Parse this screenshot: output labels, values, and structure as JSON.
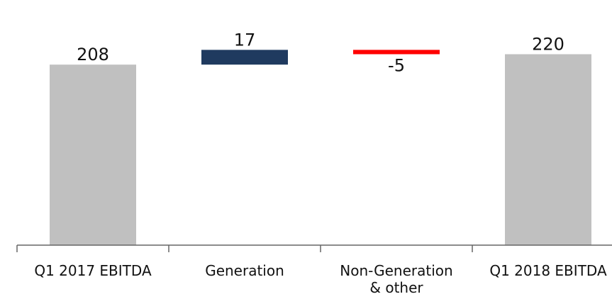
{
  "chart_data": {
    "type": "bar",
    "subtype": "waterfall",
    "categories": [
      "Q1 2017 EBITDA",
      "Generation",
      "Non-Generation & other",
      "Q1 2018 EBITDA"
    ],
    "category_lines": [
      [
        "Q1 2017 EBITDA"
      ],
      [
        "Generation"
      ],
      [
        "Non-Generation",
        "& other"
      ],
      [
        "Q1 2018 EBITDA"
      ]
    ],
    "values": [
      208,
      17,
      -5,
      220
    ],
    "value_labels": [
      "208",
      "17",
      "-5",
      "220"
    ],
    "bar_kinds": [
      "total",
      "delta",
      "delta",
      "total"
    ],
    "ylim": [
      0,
      240
    ],
    "grid": false,
    "title": "",
    "xlabel": "",
    "ylabel": "",
    "colors": {
      "total": "#c0c0c0",
      "increase": "#1f3a5f",
      "decrease": "#ff0000",
      "axis": "#666666",
      "text": "#111111"
    }
  }
}
